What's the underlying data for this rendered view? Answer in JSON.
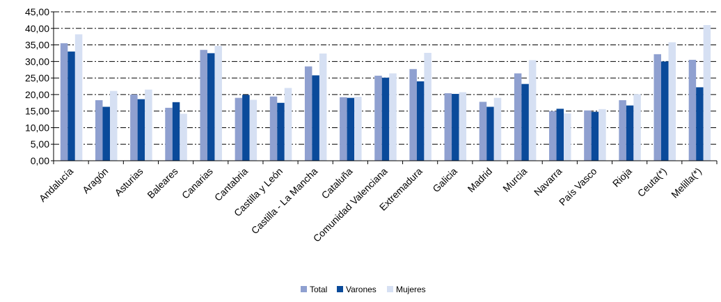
{
  "chart_data": {
    "type": "bar",
    "title": "",
    "xlabel": "",
    "ylabel": "",
    "ylim": [
      0,
      45
    ],
    "ytick_step": 5,
    "ytick_labels": [
      "0,00",
      "5,00",
      "10,00",
      "15,00",
      "20,00",
      "25,00",
      "30,00",
      "35,00",
      "40,00",
      "45,00"
    ],
    "grid": true,
    "legend_position": "bottom",
    "categories": [
      "Andalucía",
      "Aragón",
      "Asturias",
      "Baleares",
      "Canarias",
      "Cantabria",
      "Castilla y León",
      "Castilla - La Mancha",
      "Cataluña",
      "Comunidad Valenciana",
      "Extremadura",
      "Galicia",
      "Madrid",
      "Murcia",
      "Navarra",
      "País Vasco",
      "Rioja",
      "Ceuta(*)",
      "Melilla(*)"
    ],
    "series": [
      {
        "name": "Total",
        "color": "#8fa0d0",
        "values": [
          35.5,
          18.3,
          20.0,
          16.0,
          33.5,
          19.0,
          19.4,
          28.5,
          19.2,
          25.7,
          27.7,
          20.4,
          17.8,
          26.4,
          15.0,
          15.2,
          18.3,
          32.2,
          30.5
        ]
      },
      {
        "name": "Varones",
        "color": "#0a4a9a",
        "values": [
          33.0,
          16.3,
          18.6,
          17.7,
          32.5,
          19.9,
          17.5,
          25.8,
          19.0,
          25.1,
          24.0,
          20.2,
          16.3,
          23.2,
          15.7,
          14.8,
          16.7,
          30.0,
          22.2
        ]
      },
      {
        "name": "Mujeres",
        "color": "#d6e0f3",
        "values": [
          38.2,
          21.1,
          21.5,
          14.2,
          34.7,
          18.4,
          22.0,
          32.4,
          19.3,
          26.4,
          32.6,
          20.7,
          19.0,
          30.4,
          14.3,
          15.6,
          20.1,
          35.8,
          41.0
        ]
      }
    ]
  }
}
